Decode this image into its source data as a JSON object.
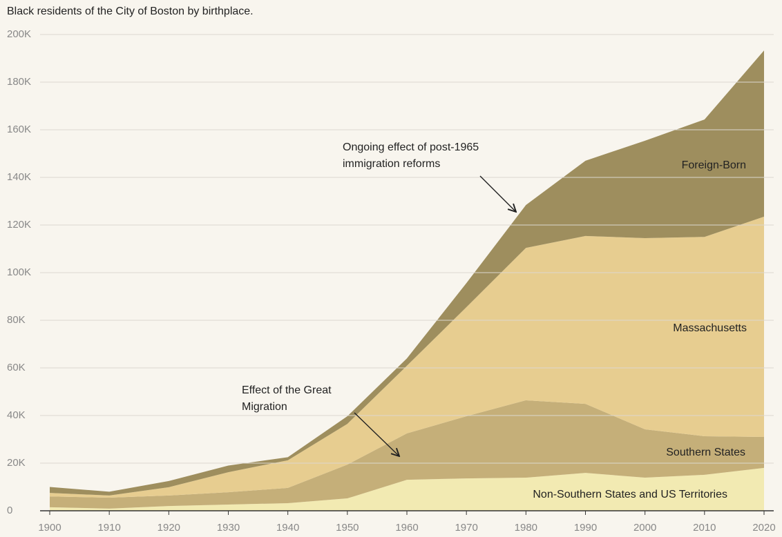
{
  "chart_data": {
    "type": "stacked_area",
    "title": "Black residents of the City of Boston by birthplace.",
    "x": [
      1900,
      1910,
      1920,
      1930,
      1940,
      1950,
      1960,
      1970,
      1980,
      1990,
      2000,
      2010,
      2020
    ],
    "xlim": [
      1900,
      2020
    ],
    "xticks": [
      1900,
      1910,
      1920,
      1930,
      1940,
      1950,
      1960,
      1970,
      1980,
      1990,
      2000,
      2010,
      2020
    ],
    "ylim": [
      0,
      200000
    ],
    "yticks": [
      0,
      {
        "value": 20000,
        "label": "20K"
      },
      {
        "value": 40000,
        "label": "40K"
      },
      {
        "value": 60000,
        "label": "60K"
      },
      {
        "value": 80000,
        "label": "80K"
      },
      {
        "value": 100000,
        "label": "100K"
      },
      {
        "value": 120000,
        "label": "120K"
      },
      {
        "value": 140000,
        "label": "140K"
      },
      {
        "value": 160000,
        "label": "160K"
      },
      {
        "value": 180000,
        "label": "180K"
      },
      {
        "value": 200000,
        "label": "200K"
      }
    ],
    "grid": true,
    "series": [
      {
        "name": "Non-Southern States and US Territories",
        "color": "#f2eab2",
        "values": [
          1500,
          900,
          2000,
          2600,
          3200,
          5200,
          13000,
          13600,
          13900,
          15900,
          13900,
          15100,
          18000
        ]
      },
      {
        "name": "Southern States",
        "color": "#c5af79",
        "values": [
          4500,
          4600,
          4400,
          5200,
          6400,
          14200,
          19500,
          26100,
          32500,
          29000,
          20300,
          16200,
          13000
        ]
      },
      {
        "name": "Massachusetts",
        "color": "#e7cd90",
        "values": [
          1500,
          900,
          3500,
          8400,
          11600,
          17100,
          28400,
          45800,
          64000,
          70500,
          80300,
          83700,
          92500
        ]
      },
      {
        "name": "Foreign-Born",
        "color": "#9e8e5e",
        "values": [
          2500,
          1600,
          2600,
          2800,
          1300,
          3200,
          3100,
          10100,
          18000,
          31600,
          40900,
          49300,
          69800
        ]
      }
    ],
    "annotations": [
      {
        "text": [
          "Ongoing effect of post-1965",
          "immigration reforms"
        ]
      },
      {
        "text": [
          "Effect of the Great",
          "Migration"
        ]
      }
    ]
  }
}
